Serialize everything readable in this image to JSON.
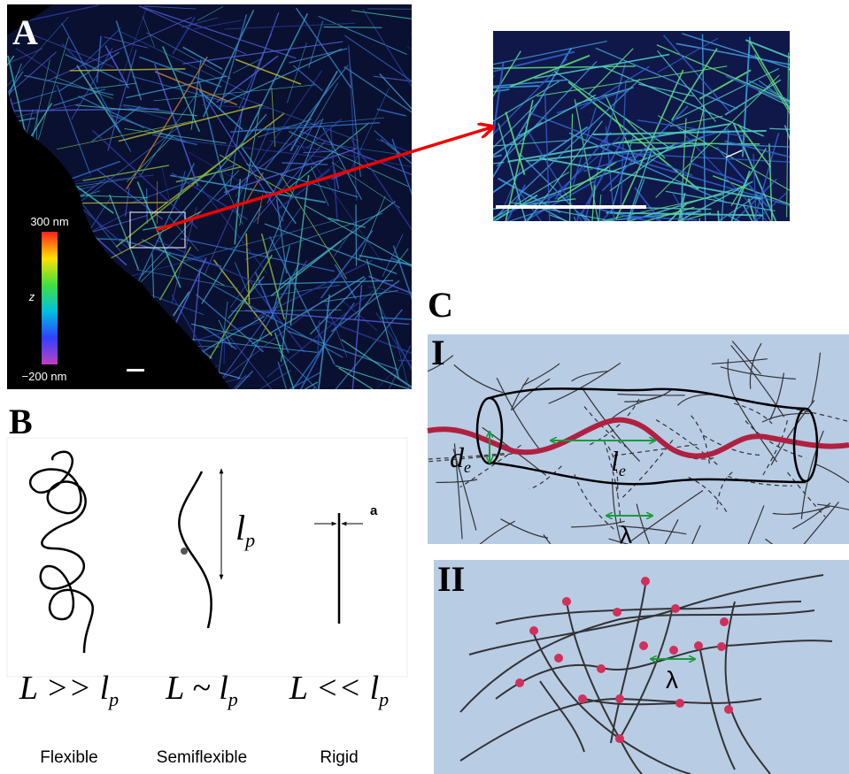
{
  "panel_a": {
    "label": "A",
    "colorbar": {
      "max_label": "300 nm",
      "axis_label": "z",
      "min_label": "−200 nm"
    }
  },
  "panel_b": {
    "label": "B",
    "lp_symbol": {
      "main": "l",
      "sub": "p"
    },
    "a_symbol": "a",
    "regimes": [
      {
        "relation": {
          "main": "L >> l",
          "sub": "p"
        },
        "name": "Flexible"
      },
      {
        "relation": {
          "main": "L ~ l",
          "sub": "p"
        },
        "name": "Semiflexible"
      },
      {
        "relation": {
          "main": "L << l",
          "sub": "p"
        },
        "name": "Rigid"
      }
    ]
  },
  "panel_c": {
    "label": "C",
    "sub_i": {
      "label": "I",
      "tube_diameter": {
        "main": "d",
        "sub": "e"
      },
      "entanglement_length": {
        "main": "l",
        "sub": "e"
      },
      "mesh_size": "λ"
    },
    "sub_ii": {
      "label": "II",
      "mesh_size": "λ"
    }
  }
}
